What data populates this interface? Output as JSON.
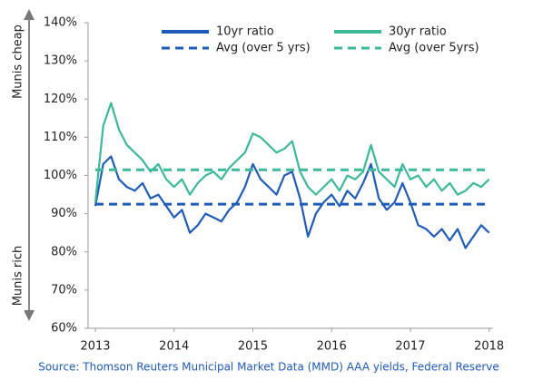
{
  "chart_data": {
    "type": "line",
    "x": [
      2013.0,
      2013.1,
      2013.2,
      2013.3,
      2013.4,
      2013.5,
      2013.6,
      2013.7,
      2013.8,
      2013.9,
      2014.0,
      2014.1,
      2014.2,
      2014.3,
      2014.4,
      2014.5,
      2014.6,
      2014.7,
      2014.8,
      2014.9,
      2015.0,
      2015.1,
      2015.2,
      2015.3,
      2015.4,
      2015.5,
      2015.6,
      2015.7,
      2015.8,
      2015.9,
      2016.0,
      2016.1,
      2016.2,
      2016.3,
      2016.4,
      2016.5,
      2016.6,
      2016.7,
      2016.8,
      2016.9,
      2017.0,
      2017.1,
      2017.2,
      2017.3,
      2017.4,
      2017.5,
      2017.6,
      2017.7,
      2017.8,
      2017.9,
      2018.0
    ],
    "series": [
      {
        "name": "10yr ratio",
        "color": "#1f5bb8",
        "dash": false,
        "values": [
          92,
          103,
          105,
          99,
          97,
          96,
          98,
          94,
          95,
          92,
          89,
          91,
          85,
          87,
          90,
          89,
          88,
          91,
          93,
          97,
          103,
          99,
          97,
          95,
          100,
          101,
          94,
          84,
          90,
          93,
          95,
          92,
          96,
          94,
          98,
          103,
          94,
          91,
          93,
          98,
          93,
          87,
          86,
          84,
          86,
          83,
          86,
          81,
          84,
          87,
          85
        ]
      },
      {
        "name": "30yr ratio",
        "color": "#3cb89a",
        "dash": false,
        "values": [
          93,
          113,
          119,
          112,
          108,
          106,
          104,
          101,
          103,
          99,
          97,
          99,
          95,
          98,
          100,
          101,
          99,
          102,
          104,
          106,
          111,
          110,
          108,
          106,
          107,
          109,
          101,
          97,
          95,
          97,
          99,
          96,
          100,
          99,
          101,
          108,
          101,
          99,
          97,
          103,
          99,
          100,
          97,
          99,
          96,
          98,
          95,
          96,
          98,
          97,
          99
        ]
      },
      {
        "name": "Avg (over 5 yrs)",
        "color": "#1f5bb8",
        "dash": true,
        "values": [
          92.5,
          92.5,
          92.5,
          92.5,
          92.5,
          92.5,
          92.5,
          92.5,
          92.5,
          92.5,
          92.5,
          92.5,
          92.5,
          92.5,
          92.5,
          92.5,
          92.5,
          92.5,
          92.5,
          92.5,
          92.5,
          92.5,
          92.5,
          92.5,
          92.5,
          92.5,
          92.5,
          92.5,
          92.5,
          92.5,
          92.5,
          92.5,
          92.5,
          92.5,
          92.5,
          92.5,
          92.5,
          92.5,
          92.5,
          92.5,
          92.5,
          92.5,
          92.5,
          92.5,
          92.5,
          92.5,
          92.5,
          92.5,
          92.5,
          92.5,
          92.5
        ]
      },
      {
        "name": "Avg (over 5yrs)",
        "color": "#3cb89a",
        "dash": true,
        "values": [
          101.5,
          101.5,
          101.5,
          101.5,
          101.5,
          101.5,
          101.5,
          101.5,
          101.5,
          101.5,
          101.5,
          101.5,
          101.5,
          101.5,
          101.5,
          101.5,
          101.5,
          101.5,
          101.5,
          101.5,
          101.5,
          101.5,
          101.5,
          101.5,
          101.5,
          101.5,
          101.5,
          101.5,
          101.5,
          101.5,
          101.5,
          101.5,
          101.5,
          101.5,
          101.5,
          101.5,
          101.5,
          101.5,
          101.5,
          101.5,
          101.5,
          101.5,
          101.5,
          101.5,
          101.5,
          101.5,
          101.5,
          101.5,
          101.5,
          101.5,
          101.5
        ]
      }
    ],
    "xlim": [
      2013,
      2018.05
    ],
    "xticks": [
      2013,
      2014,
      2015,
      2016,
      2017,
      2018
    ],
    "ylim": [
      60,
      140
    ],
    "yticks": [
      {
        "value": 60,
        "label": "60%"
      },
      {
        "value": 70,
        "label": "70%"
      },
      {
        "value": 80,
        "label": "80%"
      },
      {
        "value": 90,
        "label": "90%"
      },
      {
        "value": 100,
        "label": "100%"
      },
      {
        "value": 110,
        "label": "110%"
      },
      {
        "value": 120,
        "label": "120%"
      },
      {
        "value": 130,
        "label": "130%"
      },
      {
        "value": 140,
        "label": "140%"
      }
    ],
    "grid": false,
    "side_labels": {
      "top": "Munis cheap",
      "bottom": "Munis rich"
    },
    "source": "Source: Thomson Reuters Municipal Market Data (MMD) AAA yields, Federal Reserve"
  }
}
